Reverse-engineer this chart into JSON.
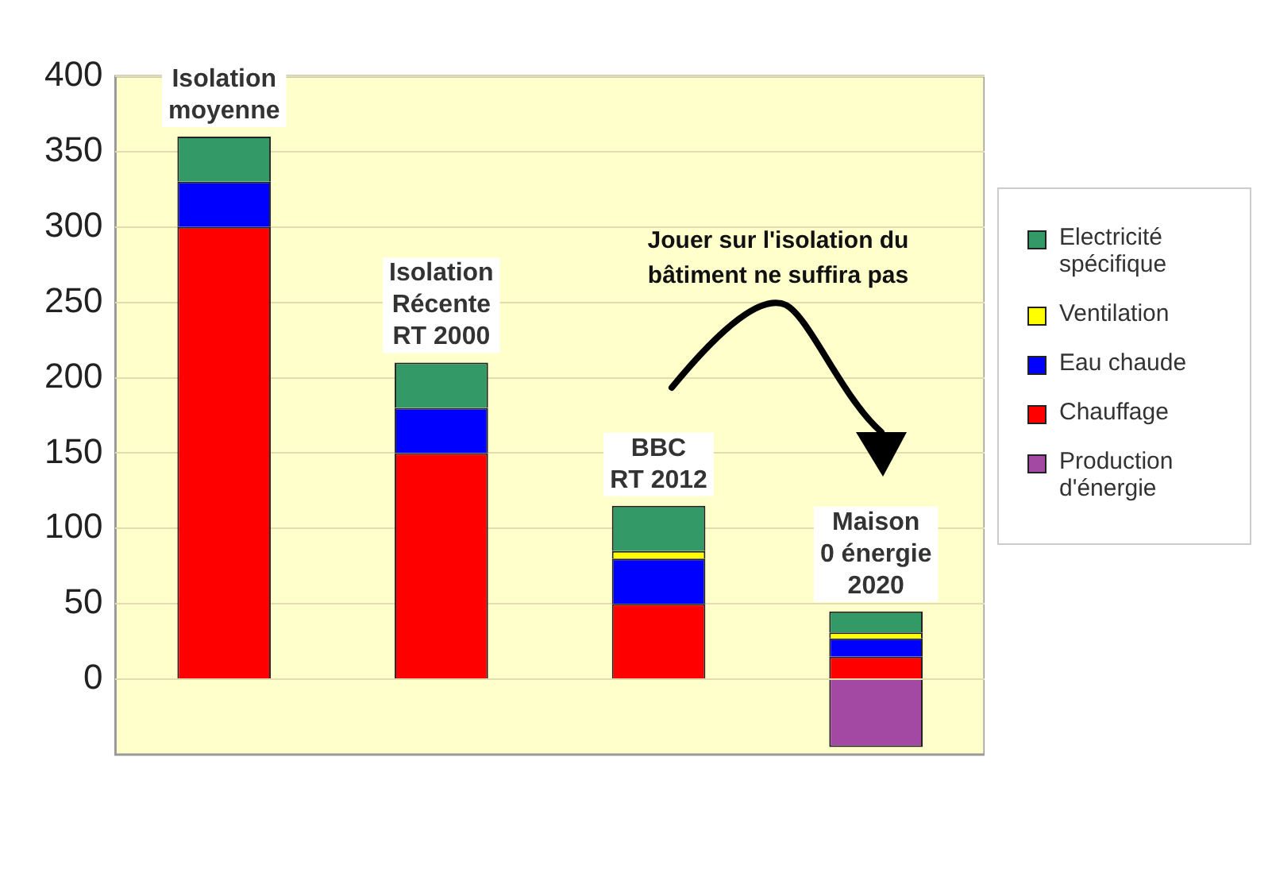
{
  "chart_data": {
    "type": "bar",
    "stacked": true,
    "categories": [
      "Isolation\nmoyenne",
      "Isolation\nRécente\nRT 2000",
      "BBC\nRT 2012",
      "Maison\n0 énergie\n2020"
    ],
    "series": [
      {
        "name": "Production d'énergie",
        "color": "#a349a4",
        "values": [
          null,
          null,
          null,
          -45
        ]
      },
      {
        "name": "Chauffage",
        "color": "#ff0000",
        "values": [
          300,
          150,
          50,
          15
        ]
      },
      {
        "name": "Eau chaude",
        "color": "#0000ff",
        "values": [
          30,
          30,
          30,
          12
        ]
      },
      {
        "name": "Ventilation",
        "color": "#ffff00",
        "values": [
          null,
          null,
          5,
          4
        ]
      },
      {
        "name": "Electricité spécifique",
        "color": "#339966",
        "values": [
          30,
          30,
          30,
          14
        ]
      }
    ],
    "ylim": [
      -50,
      400
    ],
    "yticks": [
      0,
      50,
      100,
      150,
      200,
      250,
      300,
      350,
      400
    ],
    "grid": "y",
    "legend": "right",
    "annotations": [
      "Jouer sur l'isolation du\nbâtiment ne suffira pas"
    ]
  }
}
